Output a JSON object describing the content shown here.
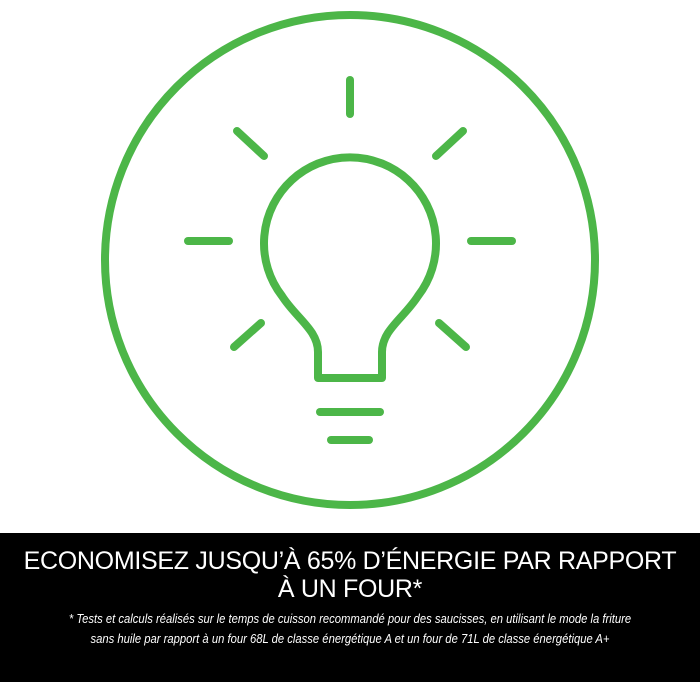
{
  "colors": {
    "accent": "#4cb648",
    "band": "#000000",
    "text": "#ffffff"
  },
  "icon": "lightbulb-icon",
  "headline": {
    "line1": "ECONOMISEZ JUSQU’À 65% D’ÉNERGIE PAR RAPPORT",
    "line2": "À UN FOUR*"
  },
  "footnote": {
    "line1": "* Tests et calculs réalisés sur le temps de cuisson recommandé pour des saucisses, en utilisant le mode la friture",
    "line2": "sans huile par rapport à un four 68L de classe énergétique A et un four de 71L de classe énergétique A+"
  }
}
